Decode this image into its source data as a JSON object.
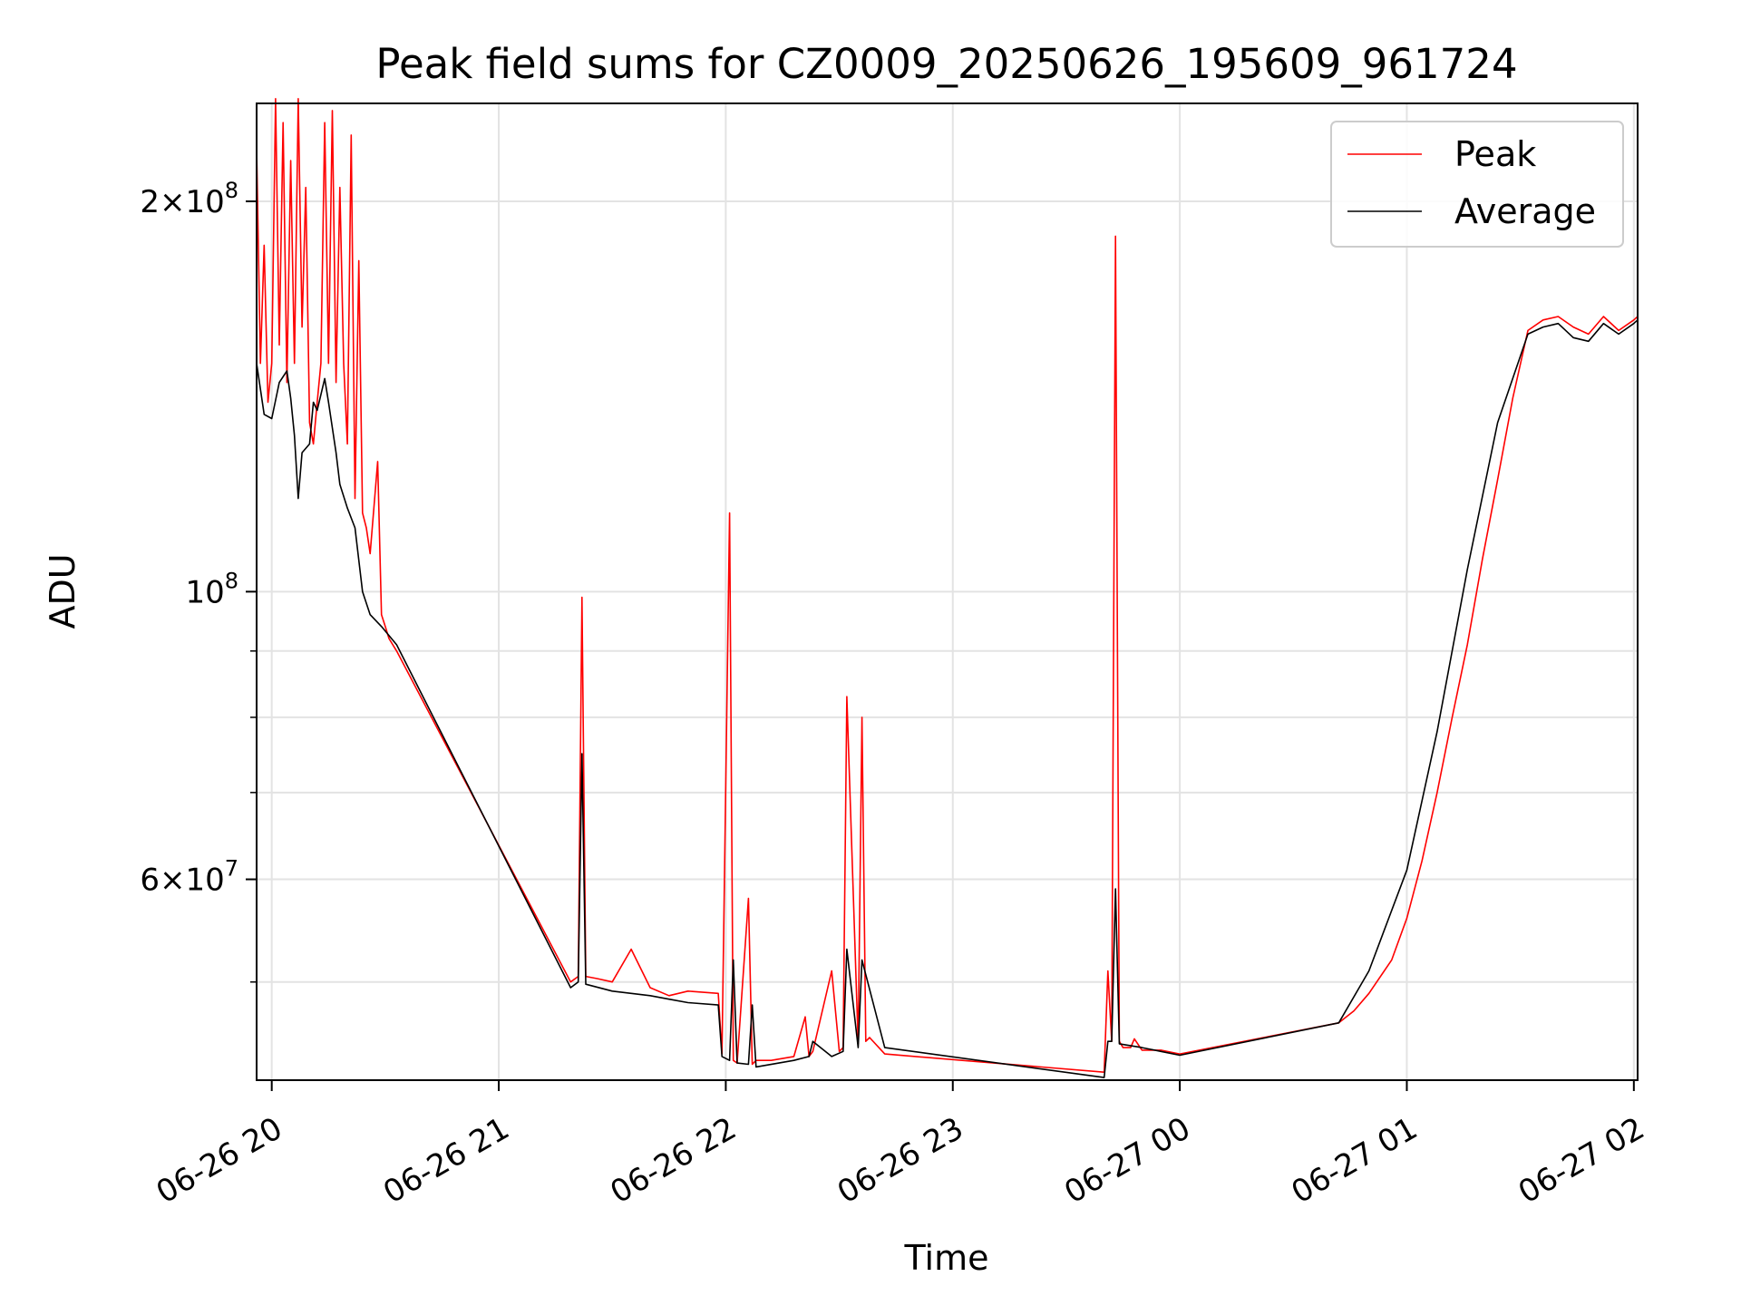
{
  "chart_data": {
    "type": "line",
    "title": "Peak field sums for CZ0009_20250626_195609_961724",
    "xlabel": "Time",
    "ylabel": "ADU",
    "y_scale": "log",
    "ylim": [
      42000000,
      238000000
    ],
    "xlim": [
      "2025-06-26 19:56",
      "2025-06-27 02:01"
    ],
    "grid": true,
    "legend_position": "top-right",
    "x_tick_labels": [
      "06-26 20",
      "06-26 21",
      "06-26 22",
      "06-26 23",
      "06-27 00",
      "06-27 01",
      "06-27 02"
    ],
    "x_ticks": [
      "2025-06-26 20:00",
      "2025-06-26 21:00",
      "2025-06-26 22:00",
      "2025-06-26 23:00",
      "2025-06-27 00:00",
      "2025-06-27 01:00",
      "2025-06-27 02:00"
    ],
    "y_major_ticks": [
      {
        "value": 60000000,
        "mantissa": "6",
        "exp": "7"
      },
      {
        "value": 100000000,
        "mantissa": "",
        "exp": "8"
      },
      {
        "value": 200000000,
        "mantissa": "2",
        "exp": "8"
      }
    ],
    "y_minor_grid": [
      50000000,
      70000000,
      80000000,
      90000000
    ],
    "series": [
      {
        "name": "Peak",
        "color": "#ff0000",
        "x": [
          "2025-06-26 19:56",
          "2025-06-26 19:57",
          "2025-06-26 19:58",
          "2025-06-26 19:59",
          "2025-06-26 20:00",
          "2025-06-26 20:01",
          "2025-06-26 20:02",
          "2025-06-26 20:03",
          "2025-06-26 20:04",
          "2025-06-26 20:05",
          "2025-06-26 20:06",
          "2025-06-26 20:07",
          "2025-06-26 20:08",
          "2025-06-26 20:09",
          "2025-06-26 20:10",
          "2025-06-26 20:11",
          "2025-06-26 20:12",
          "2025-06-26 20:13",
          "2025-06-26 20:14",
          "2025-06-26 20:15",
          "2025-06-26 20:16",
          "2025-06-26 20:17",
          "2025-06-26 20:18",
          "2025-06-26 20:19",
          "2025-06-26 20:20",
          "2025-06-26 20:21",
          "2025-06-26 20:22",
          "2025-06-26 20:23",
          "2025-06-26 20:24",
          "2025-06-26 20:25",
          "2025-06-26 20:26",
          "2025-06-26 20:28",
          "2025-06-26 20:29",
          "2025-06-26 20:30",
          "2025-06-26 20:31",
          "2025-06-26 20:33",
          "2025-06-26 21:19",
          "2025-06-26 21:21",
          "2025-06-26 21:22",
          "2025-06-26 21:23",
          "2025-06-26 21:26",
          "2025-06-26 21:30",
          "2025-06-26 21:35",
          "2025-06-26 21:40",
          "2025-06-26 21:45",
          "2025-06-26 21:50",
          "2025-06-26 21:58",
          "2025-06-26 21:59",
          "2025-06-26 22:01",
          "2025-06-26 22:02",
          "2025-06-26 22:03",
          "2025-06-26 22:06",
          "2025-06-26 22:07",
          "2025-06-26 22:08",
          "2025-06-26 22:12",
          "2025-06-26 22:18",
          "2025-06-26 22:21",
          "2025-06-26 22:22",
          "2025-06-26 22:23",
          "2025-06-26 22:28",
          "2025-06-26 22:30",
          "2025-06-26 22:31",
          "2025-06-26 22:32",
          "2025-06-26 22:35",
          "2025-06-26 22:36",
          "2025-06-26 22:37",
          "2025-06-26 22:38",
          "2025-06-26 22:42",
          "2025-06-26 23:40",
          "2025-06-26 23:41",
          "2025-06-26 23:42",
          "2025-06-26 23:43",
          "2025-06-26 23:44",
          "2025-06-26 23:45",
          "2025-06-26 23:47",
          "2025-06-26 23:48",
          "2025-06-26 23:50",
          "2025-06-26 23:55",
          "2025-06-27 00:00",
          "2025-06-27 00:42",
          "2025-06-27 00:46",
          "2025-06-27 00:50",
          "2025-06-27 00:56",
          "2025-06-27 01:00",
          "2025-06-27 01:04",
          "2025-06-27 01:08",
          "2025-06-27 01:12",
          "2025-06-27 01:16",
          "2025-06-27 01:20",
          "2025-06-27 01:24",
          "2025-06-27 01:28",
          "2025-06-27 01:32",
          "2025-06-27 01:36",
          "2025-06-27 01:40",
          "2025-06-27 01:44",
          "2025-06-27 01:48",
          "2025-06-27 01:52",
          "2025-06-27 01:56",
          "2025-06-27 02:00",
          "2025-06-27 02:01"
        ],
        "values": [
          220000000,
          150000000,
          185000000,
          140000000,
          150000000,
          240000000,
          155000000,
          230000000,
          145000000,
          215000000,
          150000000,
          240000000,
          160000000,
          205000000,
          135000000,
          130000000,
          140000000,
          150000000,
          230000000,
          150000000,
          235000000,
          145000000,
          205000000,
          150000000,
          130000000,
          225000000,
          118000000,
          180000000,
          115000000,
          112000000,
          107000000,
          126000000,
          96000000,
          94000000,
          92000000,
          90000000,
          50000000,
          50500000,
          99000000,
          50500000,
          50300000,
          50000000,
          53000000,
          49500000,
          48800000,
          49200000,
          49000000,
          44000000,
          115000000,
          43500000,
          43300000,
          58000000,
          43200000,
          43500000,
          43500000,
          43800000,
          47000000,
          43800000,
          44200000,
          51000000,
          44200000,
          44500000,
          83000000,
          44800000,
          80000000,
          45000000,
          45300000,
          44000000,
          42600000,
          51000000,
          45000000,
          188000000,
          45000000,
          44500000,
          44500000,
          45200000,
          44300000,
          44300000,
          44000000,
          46500000,
          47500000,
          49000000,
          52000000,
          56000000,
          62000000,
          70000000,
          80000000,
          91000000,
          106000000,
          122000000,
          141000000,
          159000000,
          162000000,
          163000000,
          160000000,
          158000000,
          163000000,
          159000000,
          162000000,
          163000000
        ]
      },
      {
        "name": "Average",
        "color": "#000000",
        "x": [
          "2025-06-26 19:56",
          "2025-06-26 19:58",
          "2025-06-26 20:00",
          "2025-06-26 20:02",
          "2025-06-26 20:04",
          "2025-06-26 20:05",
          "2025-06-26 20:06",
          "2025-06-26 20:07",
          "2025-06-26 20:08",
          "2025-06-26 20:10",
          "2025-06-26 20:11",
          "2025-06-26 20:12",
          "2025-06-26 20:14",
          "2025-06-26 20:15",
          "2025-06-26 20:17",
          "2025-06-26 20:18",
          "2025-06-26 20:20",
          "2025-06-26 20:22",
          "2025-06-26 20:24",
          "2025-06-26 20:26",
          "2025-06-26 20:29",
          "2025-06-26 20:33",
          "2025-06-26 21:19",
          "2025-06-26 21:21",
          "2025-06-26 21:22",
          "2025-06-26 21:23",
          "2025-06-26 21:30",
          "2025-06-26 21:35",
          "2025-06-26 21:40",
          "2025-06-26 21:45",
          "2025-06-26 21:50",
          "2025-06-26 21:58",
          "2025-06-26 21:59",
          "2025-06-26 22:01",
          "2025-06-26 22:02",
          "2025-06-26 22:03",
          "2025-06-26 22:06",
          "2025-06-26 22:07",
          "2025-06-26 22:08",
          "2025-06-26 22:18",
          "2025-06-26 22:22",
          "2025-06-26 22:23",
          "2025-06-26 22:28",
          "2025-06-26 22:31",
          "2025-06-26 22:32",
          "2025-06-26 22:35",
          "2025-06-26 22:36",
          "2025-06-26 22:42",
          "2025-06-26 23:40",
          "2025-06-26 23:41",
          "2025-06-26 23:42",
          "2025-06-26 23:43",
          "2025-06-26 23:44",
          "2025-06-26 23:50",
          "2025-06-26 23:55",
          "2025-06-27 00:00",
          "2025-06-27 00:42",
          "2025-06-27 00:50",
          "2025-06-27 01:00",
          "2025-06-27 01:08",
          "2025-06-27 01:16",
          "2025-06-27 01:24",
          "2025-06-27 01:32",
          "2025-06-27 01:36",
          "2025-06-27 01:40",
          "2025-06-27 01:44",
          "2025-06-27 01:48",
          "2025-06-27 01:52",
          "2025-06-27 01:56",
          "2025-06-27 02:00",
          "2025-06-27 02:01"
        ],
        "values": [
          150000000,
          137000000,
          136000000,
          145000000,
          148000000,
          141000000,
          132000000,
          118000000,
          128000000,
          130000000,
          140000000,
          138000000,
          146000000,
          140000000,
          128000000,
          121000000,
          116000000,
          112000000,
          100000000,
          96000000,
          94000000,
          91000000,
          49500000,
          50000000,
          75000000,
          49800000,
          49200000,
          49000000,
          48800000,
          48500000,
          48200000,
          48000000,
          43800000,
          43500000,
          52000000,
          43300000,
          43200000,
          48000000,
          43000000,
          43500000,
          43800000,
          45000000,
          43800000,
          44200000,
          53000000,
          44500000,
          52000000,
          44500000,
          42200000,
          45000000,
          45000000,
          59000000,
          44800000,
          44500000,
          44200000,
          43900000,
          46500000,
          51000000,
          61000000,
          78000000,
          104000000,
          135000000,
          158000000,
          160000000,
          161000000,
          157000000,
          156000000,
          161000000,
          158000000,
          161000000,
          162000000
        ]
      }
    ]
  }
}
